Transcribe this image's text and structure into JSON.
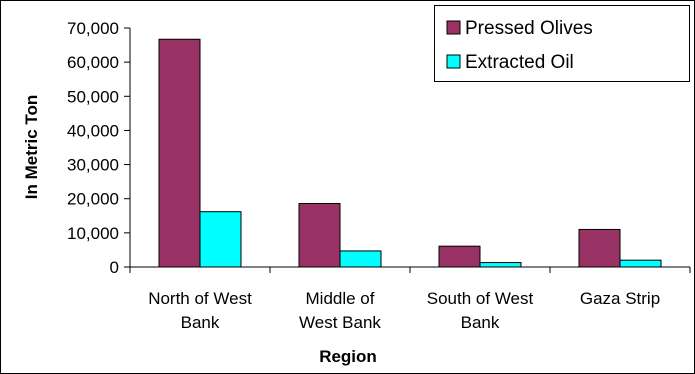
{
  "chart_data": {
    "type": "bar",
    "title": "",
    "xlabel": "Region",
    "ylabel": "In Metric Ton",
    "categories": [
      [
        "North of West",
        "Bank"
      ],
      [
        "Middle of",
        "West Bank"
      ],
      [
        "South of West",
        "Bank"
      ],
      [
        "Gaza Strip"
      ]
    ],
    "series": [
      {
        "name": "Pressed Olives",
        "color": "#993366",
        "values": [
          66700,
          18600,
          6100,
          11000
        ]
      },
      {
        "name": "Extracted Oil",
        "color": "#00FFFF",
        "values": [
          16200,
          4700,
          1300,
          2000
        ]
      }
    ],
    "ylim": [
      0,
      70000
    ],
    "yticks": [
      "0",
      "10,000",
      "20,000",
      "30,000",
      "40,000",
      "50,000",
      "60,000",
      "70,000"
    ],
    "ystep": 10000,
    "grid": false,
    "legend": "top-right"
  }
}
